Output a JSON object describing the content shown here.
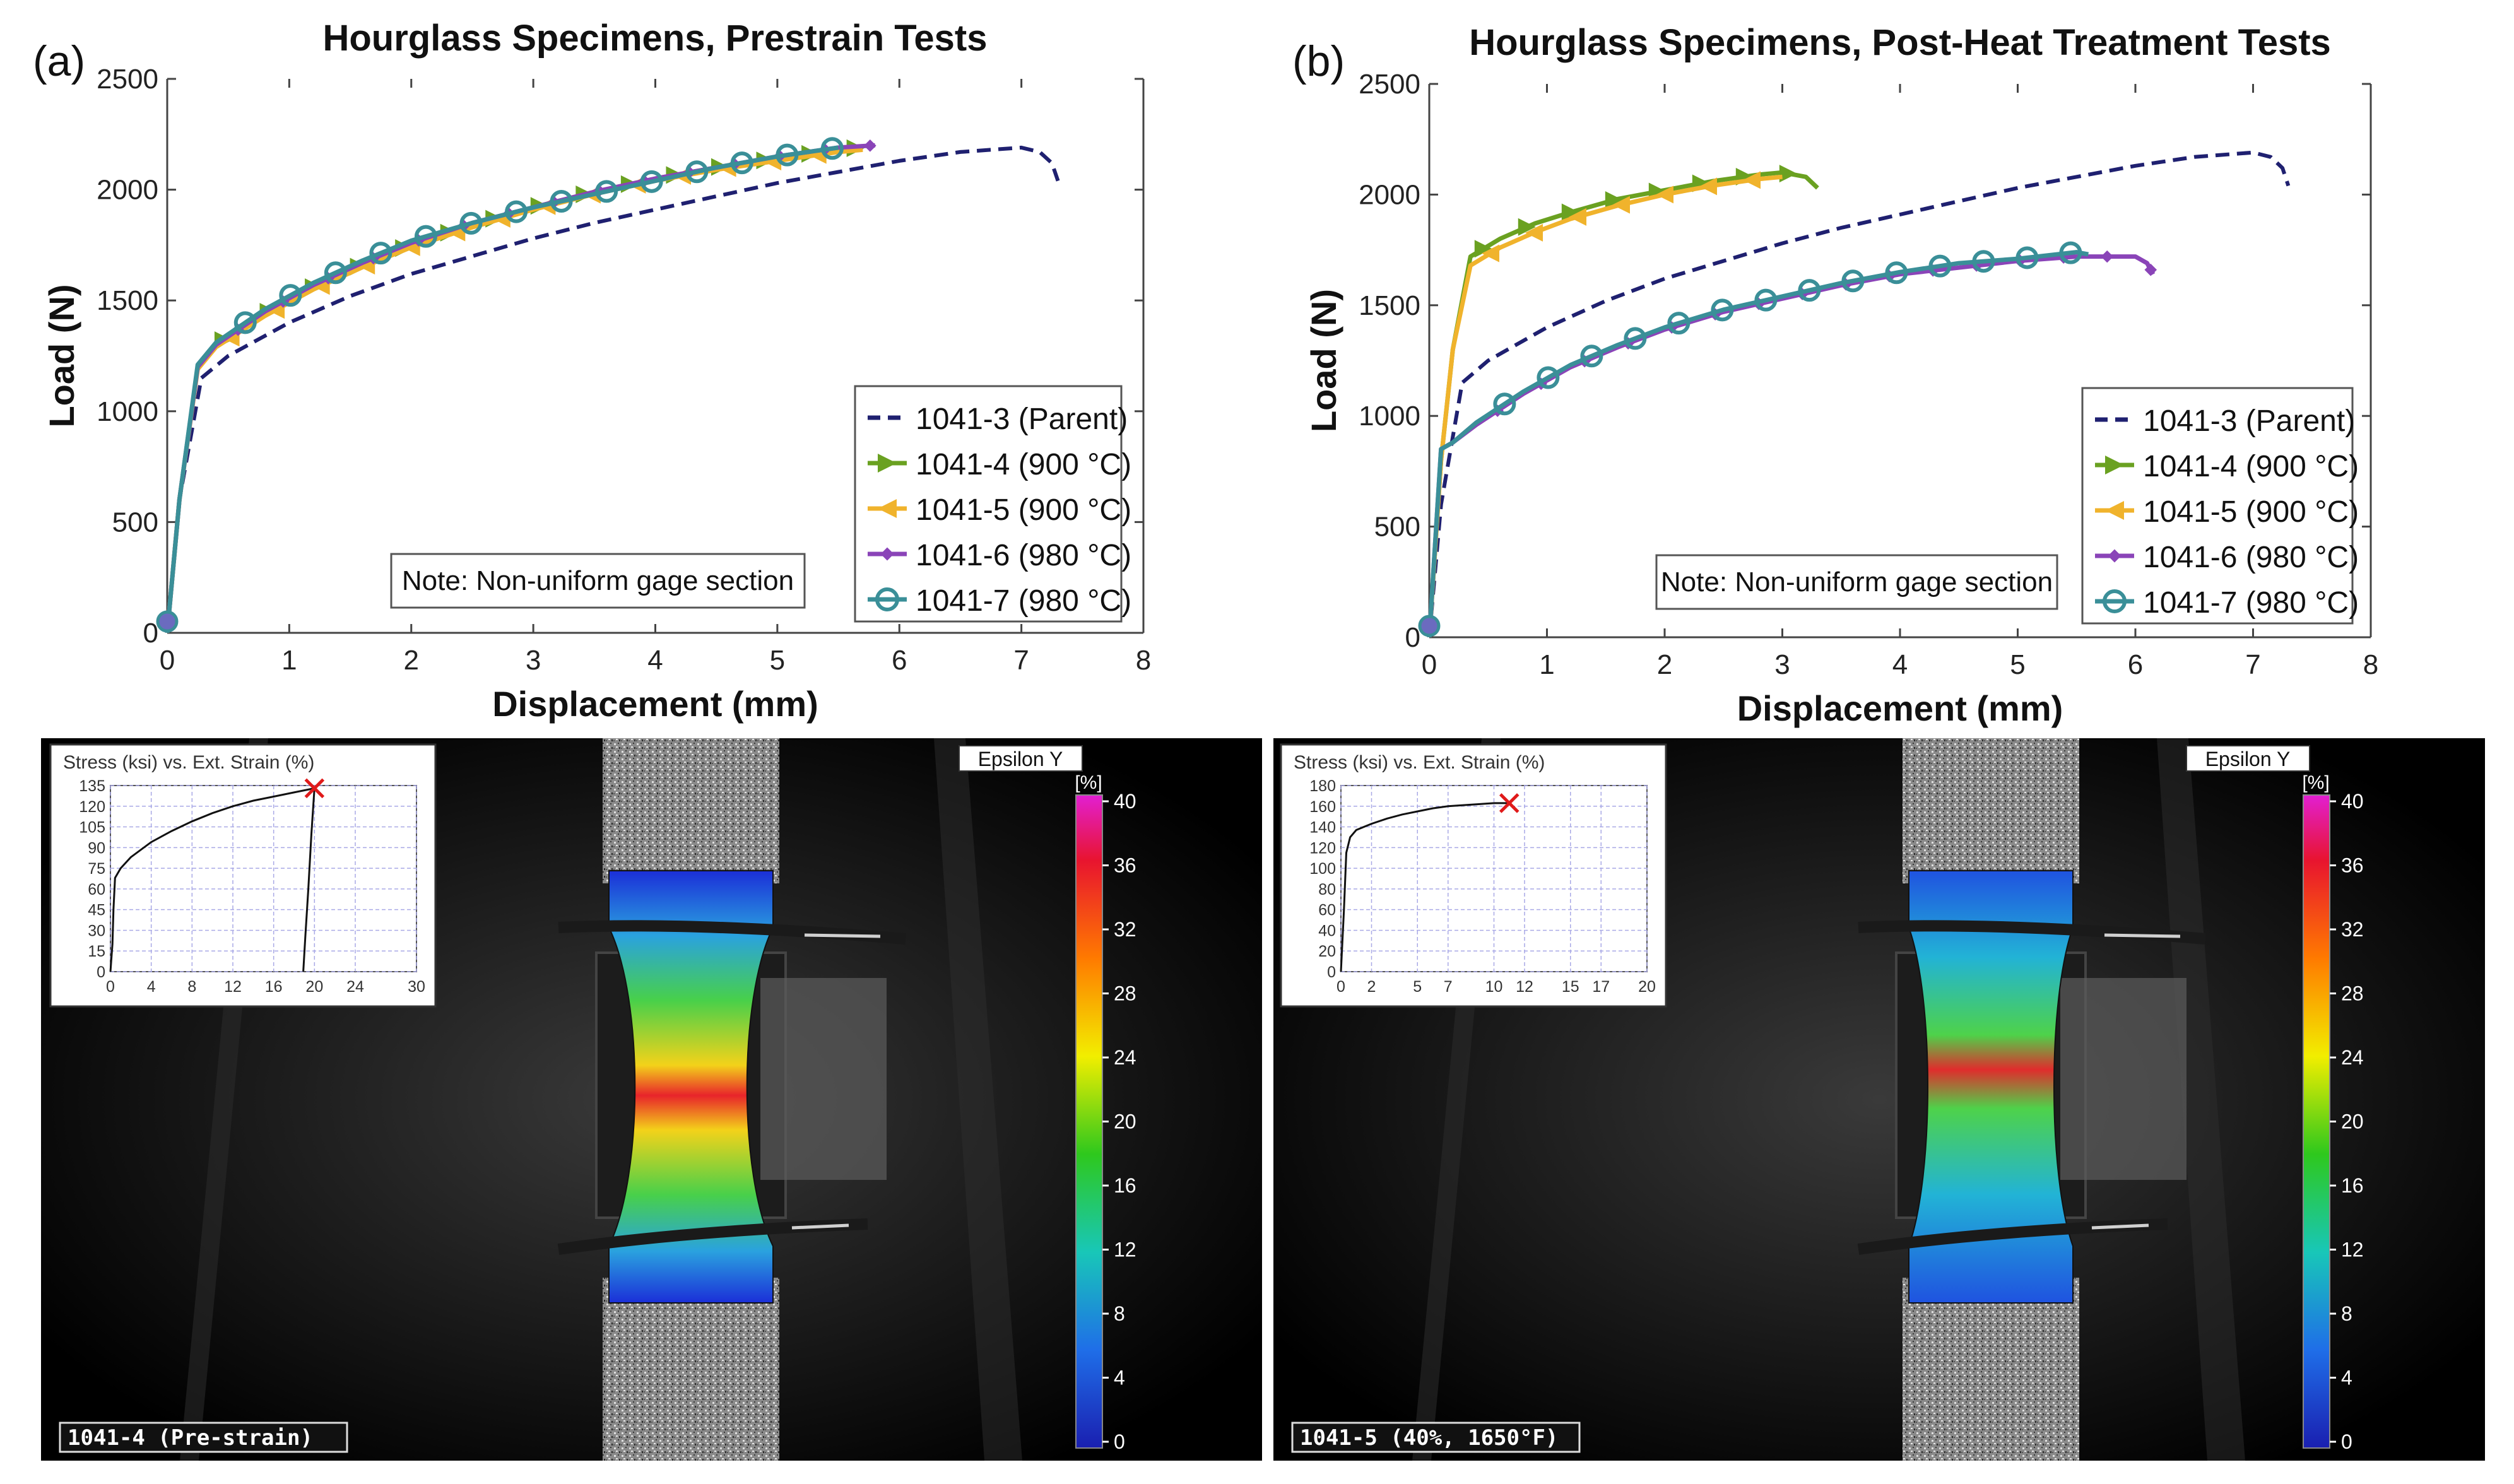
{
  "panels": [
    {
      "label": "(a)",
      "note": "Note: Non-uniform gage section",
      "dic": {
        "epsilon_label": "Epsilon Y",
        "colorbar_unit": "[%]",
        "colorbar_ticks": [
          "40",
          "36",
          "32",
          "28",
          "24",
          "20",
          "16",
          "12",
          "8",
          "4",
          "0"
        ],
        "specimen_label": "1041-4 (Pre-strain)",
        "inset": {
          "title": "Stress (ksi) vs. Ext. Strain (%)",
          "y_ticks": [
            "135",
            "120",
            "105",
            "90",
            "75",
            "60",
            "45",
            "30",
            "15",
            "0"
          ],
          "x_ticks": [
            "0",
            "4",
            "8",
            "12",
            "16",
            "20",
            "24",
            "30"
          ],
          "x_range": [
            0,
            30
          ],
          "y_range": [
            0,
            135
          ],
          "curve": [
            [
              0,
              0
            ],
            [
              0.2,
              20
            ],
            [
              0.3,
              45
            ],
            [
              0.45,
              68
            ],
            [
              1,
              75
            ],
            [
              2,
              83
            ],
            [
              4,
              94
            ],
            [
              6,
              102
            ],
            [
              8,
              109
            ],
            [
              10,
              115
            ],
            [
              12,
              120
            ],
            [
              14,
              124
            ],
            [
              16,
              127
            ],
            [
              18,
              130
            ],
            [
              20,
              133
            ]
          ],
          "drop": [
            [
              20,
              133
            ],
            [
              19.7,
              100
            ],
            [
              19.4,
              60
            ],
            [
              19.1,
              25
            ],
            [
              18.9,
              0
            ]
          ],
          "fracture": [
            20,
            133
          ]
        }
      }
    },
    {
      "label": "(b)",
      "note": "Note: Non-uniform gage section",
      "dic": {
        "epsilon_label": "Epsilon Y",
        "colorbar_unit": "[%]",
        "colorbar_ticks": [
          "40",
          "36",
          "32",
          "28",
          "24",
          "20",
          "16",
          "12",
          "8",
          "4",
          "0"
        ],
        "specimen_label": "1041-5 (40%, 1650°F)",
        "inset": {
          "title": "Stress (ksi) vs. Ext. Strain (%)",
          "y_ticks": [
            "180",
            "160",
            "140",
            "120",
            "100",
            "80",
            "60",
            "40",
            "20",
            "0"
          ],
          "x_ticks": [
            "0",
            "2",
            "5",
            "7",
            "10",
            "12",
            "15",
            "17",
            "20"
          ],
          "x_range": [
            0,
            20
          ],
          "y_range": [
            0,
            180
          ],
          "curve": [
            [
              0,
              0
            ],
            [
              0.2,
              60
            ],
            [
              0.35,
              115
            ],
            [
              0.6,
              130
            ],
            [
              1,
              137
            ],
            [
              2,
              143
            ],
            [
              3,
              148
            ],
            [
              4,
              152
            ],
            [
              5,
              155
            ],
            [
              6,
              158
            ],
            [
              7,
              160
            ],
            [
              8,
              161
            ],
            [
              9,
              162
            ],
            [
              10,
              163
            ],
            [
              11,
              163
            ]
          ],
          "drop": [],
          "fracture": [
            11,
            163
          ]
        }
      }
    }
  ],
  "chart_data": [
    {
      "type": "line",
      "title": "Hourglass Specimens, Prestrain Tests",
      "xlabel": "Displacement (mm)",
      "ylabel": "Load (N)",
      "xlim": [
        0,
        8
      ],
      "ylim": [
        0,
        2500
      ],
      "x_ticks": [
        "0",
        "1",
        "2",
        "3",
        "4",
        "5",
        "6",
        "7",
        "8"
      ],
      "y_ticks": [
        "0",
        "500",
        "1000",
        "1500",
        "2000",
        "2500"
      ],
      "legend_position": "bottom-right",
      "series": [
        {
          "name": "1041-3 (Parent)",
          "color": "#1f2070",
          "style": "dashed",
          "marker": "none",
          "points": [
            [
              0,
              0
            ],
            [
              0.1,
              600
            ],
            [
              0.28,
              1150
            ],
            [
              0.5,
              1250
            ],
            [
              1,
              1400
            ],
            [
              1.5,
              1520
            ],
            [
              2,
              1620
            ],
            [
              2.5,
              1700
            ],
            [
              3,
              1780
            ],
            [
              3.5,
              1850
            ],
            [
              4,
              1910
            ],
            [
              4.5,
              1970
            ],
            [
              5,
              2030
            ],
            [
              5.5,
              2080
            ],
            [
              6,
              2130
            ],
            [
              6.5,
              2170
            ],
            [
              7,
              2190
            ],
            [
              7.15,
              2170
            ],
            [
              7.25,
              2120
            ],
            [
              7.3,
              2040
            ]
          ]
        },
        {
          "name": "1041-4 (900 °C)",
          "color": "#6aa121",
          "style": "solid",
          "marker": "triangle-right",
          "points": [
            [
              0,
              0
            ],
            [
              0.1,
              600
            ],
            [
              0.25,
              1200
            ],
            [
              0.4,
              1300
            ],
            [
              0.8,
              1440
            ],
            [
              1.2,
              1560
            ],
            [
              1.6,
              1660
            ],
            [
              2,
              1750
            ],
            [
              2.5,
              1840
            ],
            [
              3,
              1920
            ],
            [
              3.5,
              1990
            ],
            [
              4,
              2050
            ],
            [
              4.5,
              2100
            ],
            [
              5,
              2140
            ],
            [
              5.5,
              2180
            ],
            [
              5.7,
              2190
            ]
          ]
        },
        {
          "name": "1041-5 (900 °C)",
          "color": "#f0b32c",
          "style": "solid",
          "marker": "triangle-left",
          "points": [
            [
              0,
              0
            ],
            [
              0.1,
              600
            ],
            [
              0.25,
              1190
            ],
            [
              0.4,
              1290
            ],
            [
              0.8,
              1430
            ],
            [
              1.2,
              1550
            ],
            [
              1.6,
              1650
            ],
            [
              2,
              1740
            ],
            [
              2.5,
              1830
            ],
            [
              3,
              1910
            ],
            [
              3.5,
              1980
            ],
            [
              4,
              2040
            ],
            [
              4.5,
              2090
            ],
            [
              5,
              2130
            ],
            [
              5.5,
              2170
            ],
            [
              5.7,
              2180
            ]
          ]
        },
        {
          "name": "1041-6 (980 °C)",
          "color": "#8a44b8",
          "style": "solid",
          "marker": "diamond",
          "points": [
            [
              0,
              0
            ],
            [
              0.1,
              600
            ],
            [
              0.25,
              1200
            ],
            [
              0.4,
              1300
            ],
            [
              0.8,
              1450
            ],
            [
              1.2,
              1570
            ],
            [
              1.6,
              1670
            ],
            [
              2,
              1760
            ],
            [
              2.5,
              1850
            ],
            [
              3,
              1920
            ],
            [
              3.5,
              1990
            ],
            [
              4,
              2050
            ],
            [
              4.5,
              2100
            ],
            [
              5,
              2150
            ],
            [
              5.5,
              2190
            ],
            [
              5.8,
              2200
            ]
          ]
        },
        {
          "name": "1041-7 (980 °C)",
          "color": "#3a8f98",
          "style": "solid",
          "marker": "circle",
          "points": [
            [
              0,
              0
            ],
            [
              0.1,
              600
            ],
            [
              0.25,
              1210
            ],
            [
              0.4,
              1310
            ],
            [
              0.8,
              1460
            ],
            [
              1.2,
              1580
            ],
            [
              1.6,
              1680
            ],
            [
              2,
              1770
            ],
            [
              2.5,
              1850
            ],
            [
              3,
              1920
            ],
            [
              3.5,
              1980
            ],
            [
              4,
              2040
            ],
            [
              4.5,
              2100
            ],
            [
              5,
              2150
            ],
            [
              5.5,
              2190
            ]
          ]
        }
      ]
    },
    {
      "type": "line",
      "title": "Hourglass Specimens, Post-Heat Treatment Tests",
      "xlabel": "Displacement (mm)",
      "ylabel": "Load (N)",
      "xlim": [
        0,
        8
      ],
      "ylim": [
        0,
        2500
      ],
      "x_ticks": [
        "0",
        "1",
        "2",
        "3",
        "4",
        "5",
        "6",
        "7",
        "8"
      ],
      "y_ticks": [
        "0",
        "500",
        "1000",
        "1500",
        "2000",
        "2500"
      ],
      "legend_position": "bottom-right",
      "series": [
        {
          "name": "1041-3 (Parent)",
          "color": "#1f2070",
          "style": "dashed",
          "marker": "none",
          "points": [
            [
              0,
              0
            ],
            [
              0.1,
              600
            ],
            [
              0.28,
              1150
            ],
            [
              0.5,
              1250
            ],
            [
              1,
              1400
            ],
            [
              1.5,
              1520
            ],
            [
              2,
              1620
            ],
            [
              2.5,
              1700
            ],
            [
              3,
              1780
            ],
            [
              3.5,
              1850
            ],
            [
              4,
              1910
            ],
            [
              4.5,
              1970
            ],
            [
              5,
              2030
            ],
            [
              5.5,
              2080
            ],
            [
              6,
              2130
            ],
            [
              6.5,
              2170
            ],
            [
              7,
              2190
            ],
            [
              7.15,
              2170
            ],
            [
              7.25,
              2120
            ],
            [
              7.3,
              2040
            ]
          ]
        },
        {
          "name": "1041-4 (900 °C)",
          "color": "#6aa121",
          "style": "solid",
          "marker": "triangle-right",
          "points": [
            [
              0,
              0
            ],
            [
              0.1,
              800
            ],
            [
              0.2,
              1300
            ],
            [
              0.35,
              1720
            ],
            [
              0.6,
              1800
            ],
            [
              0.9,
              1870
            ],
            [
              1.2,
              1920
            ],
            [
              1.6,
              1980
            ],
            [
              2,
              2020
            ],
            [
              2.4,
              2060
            ],
            [
              2.8,
              2090
            ],
            [
              3,
              2100
            ],
            [
              3.2,
              2080
            ],
            [
              3.3,
              2030
            ]
          ]
        },
        {
          "name": "1041-5 (900 °C)",
          "color": "#f0b32c",
          "style": "solid",
          "marker": "triangle-left",
          "points": [
            [
              0,
              0
            ],
            [
              0.1,
              800
            ],
            [
              0.2,
              1300
            ],
            [
              0.35,
              1680
            ],
            [
              0.6,
              1760
            ],
            [
              0.9,
              1830
            ],
            [
              1.2,
              1890
            ],
            [
              1.6,
              1950
            ],
            [
              2,
              2000
            ],
            [
              2.4,
              2040
            ],
            [
              2.8,
              2070
            ],
            [
              3,
              2080
            ]
          ]
        },
        {
          "name": "1041-6 (980 °C)",
          "color": "#8a44b8",
          "style": "solid",
          "marker": "diamond",
          "points": [
            [
              0,
              0
            ],
            [
              0.1,
              850
            ],
            [
              0.2,
              880
            ],
            [
              0.4,
              960
            ],
            [
              0.8,
              1100
            ],
            [
              1.2,
              1220
            ],
            [
              1.6,
              1310
            ],
            [
              2,
              1390
            ],
            [
              2.5,
              1470
            ],
            [
              3,
              1530
            ],
            [
              3.5,
              1590
            ],
            [
              4,
              1640
            ],
            [
              4.5,
              1670
            ],
            [
              5,
              1700
            ],
            [
              5.5,
              1720
            ],
            [
              6,
              1720
            ],
            [
              6.1,
              1690
            ],
            [
              6.15,
              1640
            ]
          ]
        },
        {
          "name": "1041-7 (980 °C)",
          "color": "#3a8f98",
          "style": "solid",
          "marker": "circle",
          "points": [
            [
              0,
              0
            ],
            [
              0.1,
              850
            ],
            [
              0.2,
              880
            ],
            [
              0.4,
              970
            ],
            [
              0.8,
              1110
            ],
            [
              1.2,
              1230
            ],
            [
              1.6,
              1320
            ],
            [
              2,
              1400
            ],
            [
              2.5,
              1480
            ],
            [
              3,
              1540
            ],
            [
              3.5,
              1600
            ],
            [
              4,
              1650
            ],
            [
              4.5,
              1690
            ],
            [
              5,
              1710
            ],
            [
              5.5,
              1740
            ],
            [
              5.6,
              1730
            ]
          ]
        }
      ]
    }
  ]
}
